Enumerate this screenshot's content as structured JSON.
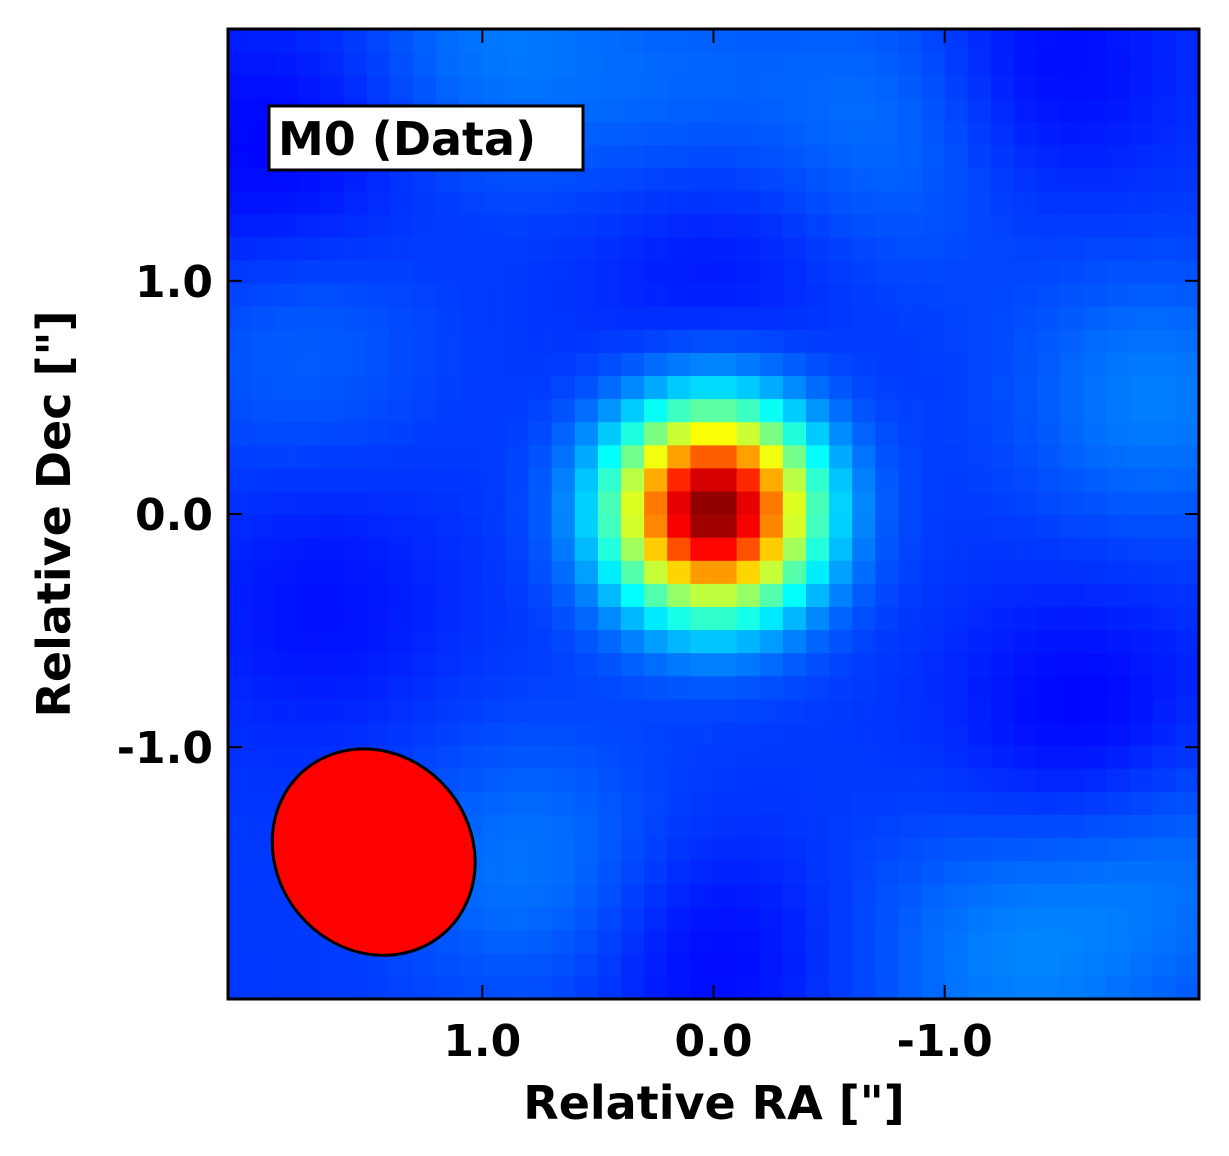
{
  "chart_data": {
    "type": "heatmap",
    "title": "",
    "panel_label": "M0 (Data)",
    "xlabel": "Relative RA [\"]",
    "ylabel": "Relative Dec [\"]",
    "x_inverted": true,
    "xlim": [
      2.1,
      -2.1
    ],
    "ylim": [
      -2.08,
      2.08
    ],
    "x_ticks": [
      {
        "value": 1.0,
        "label": "1.0"
      },
      {
        "value": 0.0,
        "label": "0.0"
      },
      {
        "value": -1.0,
        "label": "-1.0"
      }
    ],
    "y_ticks": [
      {
        "value": 1.0,
        "label": "1.0"
      },
      {
        "value": 0.0,
        "label": "0.0"
      },
      {
        "value": -1.0,
        "label": "-1.0"
      }
    ],
    "colormap": "jet",
    "colormap_stops": [
      "#00007f",
      "#0000ff",
      "#007fff",
      "#00ffff",
      "#7fff7f",
      "#ffff00",
      "#ff7f00",
      "#ff0000",
      "#7f0000"
    ],
    "grid": {
      "nx": 42,
      "ny": 42,
      "x_range": [
        2.1,
        -2.1
      ],
      "y_range": [
        -2.08,
        2.08
      ]
    },
    "source": {
      "center": [
        0.0,
        0.02
      ],
      "peak": 1.0,
      "sigma_ra": 0.3,
      "sigma_dec": 0.3
    },
    "background": {
      "level": 0.18,
      "features": [
        {
          "ra": 1.0,
          "dec": 2.0,
          "amp": 0.06,
          "sigma": 0.4
        },
        {
          "ra": 0.2,
          "dec": 1.8,
          "amp": 0.04,
          "sigma": 0.4
        },
        {
          "ra": -0.8,
          "dec": 1.7,
          "amp": 0.06,
          "sigma": 0.45
        },
        {
          "ra": -1.9,
          "dec": 0.5,
          "amp": 0.07,
          "sigma": 0.4
        },
        {
          "ra": 1.8,
          "dec": 0.8,
          "amp": 0.05,
          "sigma": 0.4
        },
        {
          "ra": 0.8,
          "dec": -1.5,
          "amp": 0.06,
          "sigma": 0.4
        },
        {
          "ra": -1.3,
          "dec": -1.9,
          "amp": 0.07,
          "sigma": 0.45
        },
        {
          "ra": -2.0,
          "dec": -1.5,
          "amp": 0.05,
          "sigma": 0.4
        },
        {
          "ra": 1.9,
          "dec": 1.5,
          "amp": -0.06,
          "sigma": 0.45
        },
        {
          "ra": 0.0,
          "dec": 1.1,
          "amp": -0.04,
          "sigma": 0.4
        },
        {
          "ra": -1.6,
          "dec": -0.9,
          "amp": -0.06,
          "sigma": 0.4
        },
        {
          "ra": 1.7,
          "dec": -0.4,
          "amp": -0.04,
          "sigma": 0.4
        },
        {
          "ra": 0.0,
          "dec": -1.9,
          "amp": -0.05,
          "sigma": 0.35
        },
        {
          "ra": -1.4,
          "dec": 1.9,
          "amp": -0.06,
          "sigma": 0.4
        }
      ]
    },
    "beam": {
      "center_ra": 1.47,
      "center_dec": -1.45,
      "semi_major": 0.46,
      "semi_minor": 0.42,
      "angle_deg": 40,
      "fill": "#ff0000",
      "edge": "#000000"
    }
  }
}
